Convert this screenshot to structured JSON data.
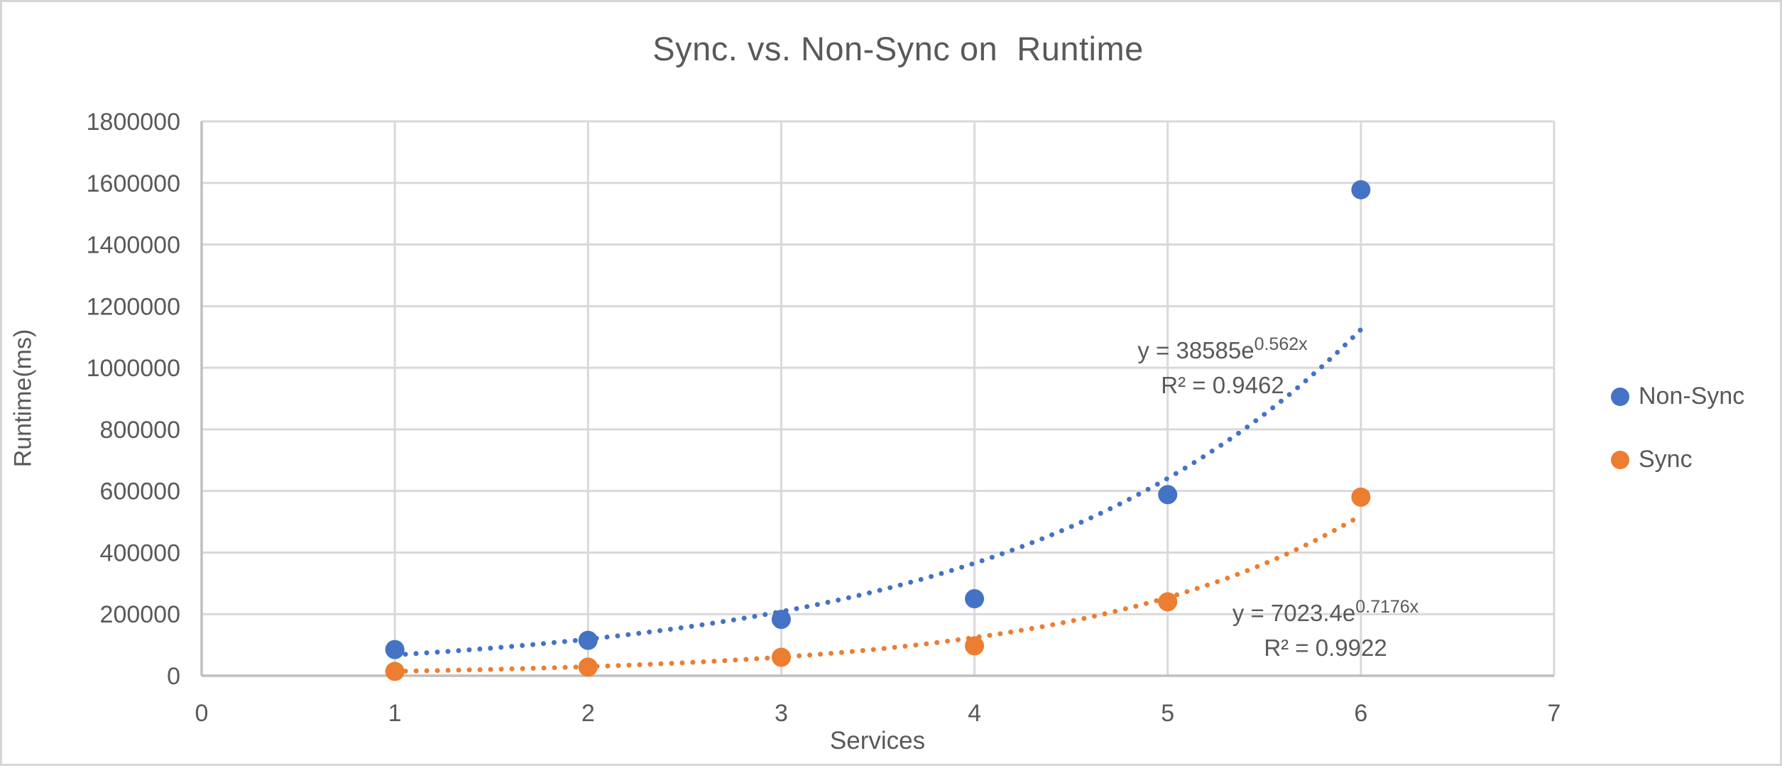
{
  "chart_data": {
    "type": "scatter",
    "title": "Sync. vs. Non-Sync on  Runtime",
    "xlabel": "Services",
    "ylabel": "Runtime(ms)",
    "xlim": [
      0,
      7
    ],
    "ylim": [
      0,
      1800000
    ],
    "x_ticks": [
      0,
      1,
      2,
      3,
      4,
      5,
      6,
      7
    ],
    "y_ticks": [
      0,
      200000,
      400000,
      600000,
      800000,
      1000000,
      1200000,
      1400000,
      1600000,
      1800000
    ],
    "grid": true,
    "legend_position": "right",
    "x": [
      1,
      2,
      3,
      4,
      5,
      6
    ],
    "series": [
      {
        "name": "Non-Sync",
        "color": "#4472C4",
        "values": [
          85000,
          115000,
          183000,
          250000,
          588000,
          1578000
        ],
        "trendline": {
          "type": "exponential",
          "a": 38585,
          "b": 0.562,
          "range": [
            1,
            6
          ],
          "equation_base": "y = 38585e",
          "equation_exponent": "0.562x",
          "r_squared_label": "R² = 0.9462"
        }
      },
      {
        "name": "Sync",
        "color": "#ED7D31",
        "values": [
          14000,
          28000,
          60000,
          97000,
          240000,
          580000
        ],
        "trendline": {
          "type": "exponential",
          "a": 7023.4,
          "b": 0.7176,
          "range": [
            1,
            6
          ],
          "equation_base": "y = 7023.4e",
          "equation_exponent": "0.7176x",
          "r_squared_label": "R² = 0.9922"
        }
      }
    ],
    "colors": {
      "grid": "#D9D9D9",
      "axis": "#BFBFBF",
      "text": "#595959"
    }
  }
}
